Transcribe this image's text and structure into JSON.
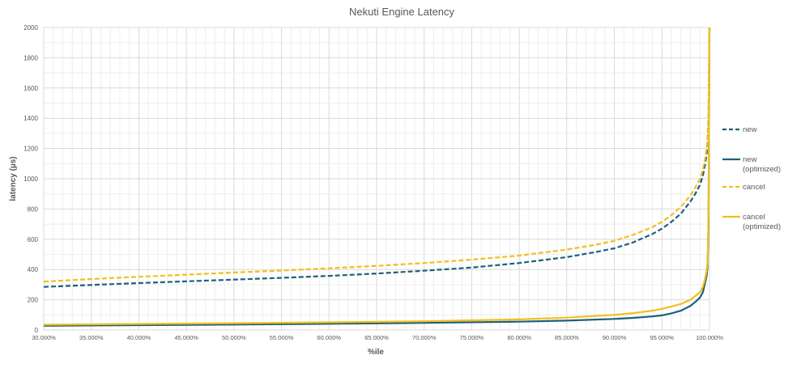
{
  "chart_data": {
    "type": "line",
    "title": "Nekuti Engine Latency",
    "xlabel": "%ile",
    "ylabel": "latency (µs)",
    "xlim": [
      30,
      100
    ],
    "ylim": [
      0,
      2000
    ],
    "x_ticks": [
      30,
      35,
      40,
      45,
      50,
      55,
      60,
      65,
      70,
      75,
      80,
      85,
      90,
      95,
      100
    ],
    "x_tick_labels": [
      "30.000%",
      "35.000%",
      "40.000%",
      "45.000%",
      "50.000%",
      "55.000%",
      "60.000%",
      "65.000%",
      "70.000%",
      "75.000%",
      "80.000%",
      "85.000%",
      "90.000%",
      "95.000%",
      "100.000%"
    ],
    "y_ticks": [
      0,
      200,
      400,
      600,
      800,
      1000,
      1200,
      1400,
      1600,
      1800,
      2000
    ],
    "y_tick_labels": [
      "0",
      "200",
      "400",
      "600",
      "800",
      "1000",
      "1200",
      "1400",
      "1600",
      "1800",
      "2000"
    ],
    "grid": true,
    "legend_position": "right",
    "series": [
      {
        "name": "new",
        "color": "#1f5f7a",
        "style": "dashed",
        "x": [
          30,
          35,
          40,
          45,
          50,
          55,
          60,
          65,
          70,
          75,
          80,
          85,
          88,
          90,
          92,
          94,
          95,
          96,
          97,
          98,
          98.5,
          99,
          99.3,
          99.5,
          99.7,
          99.8,
          99.9,
          100
        ],
        "values": [
          285,
          298,
          310,
          322,
          333,
          345,
          358,
          373,
          392,
          413,
          443,
          482,
          515,
          540,
          580,
          635,
          670,
          715,
          770,
          850,
          900,
          960,
          1020,
          1080,
          1160,
          1240,
          1400,
          2000
        ]
      },
      {
        "name": "new (optimized)",
        "color": "#1f5f7a",
        "style": "solid",
        "x": [
          30,
          40,
          50,
          60,
          70,
          80,
          85,
          90,
          92,
          94,
          95,
          96,
          97,
          98,
          98.5,
          99,
          99.3,
          99.5,
          99.7,
          99.8,
          99.9,
          100
        ],
        "values": [
          28,
          32,
          36,
          41,
          47,
          55,
          62,
          73,
          80,
          90,
          97,
          110,
          128,
          160,
          185,
          215,
          250,
          300,
          360,
          420,
          700,
          2000
        ]
      },
      {
        "name": "cancel",
        "color": "#f2bf1d",
        "style": "dashed",
        "x": [
          30,
          35,
          40,
          45,
          50,
          55,
          60,
          65,
          70,
          75,
          80,
          85,
          88,
          90,
          92,
          94,
          95,
          96,
          97,
          98,
          98.5,
          99,
          99.3,
          99.5,
          99.7,
          99.8,
          99.9,
          100
        ],
        "values": [
          320,
          337,
          352,
          366,
          380,
          393,
          408,
          424,
          443,
          465,
          492,
          532,
          563,
          590,
          630,
          680,
          715,
          760,
          815,
          890,
          940,
          1000,
          1060,
          1120,
          1200,
          1280,
          1450,
          2000
        ]
      },
      {
        "name": "cancel (optimized)",
        "color": "#f2bf1d",
        "style": "solid",
        "x": [
          30,
          40,
          50,
          60,
          70,
          80,
          85,
          90,
          92,
          94,
          95,
          96,
          97,
          98,
          98.5,
          99,
          99.3,
          99.5,
          99.7,
          99.8,
          99.9,
          100
        ],
        "values": [
          35,
          40,
          45,
          51,
          58,
          70,
          82,
          100,
          112,
          128,
          140,
          155,
          172,
          200,
          225,
          250,
          285,
          330,
          390,
          450,
          750,
          2000
        ]
      }
    ],
    "legend": [
      {
        "lines": [
          "new"
        ],
        "color": "#1f5f7a",
        "style": "dashed"
      },
      {
        "lines": [
          "new",
          "(optimized)"
        ],
        "color": "#1f5f7a",
        "style": "solid"
      },
      {
        "lines": [
          "cancel"
        ],
        "color": "#f2bf1d",
        "style": "dashed"
      },
      {
        "lines": [
          "cancel",
          "(optimized)"
        ],
        "color": "#f2bf1d",
        "style": "solid"
      }
    ]
  }
}
